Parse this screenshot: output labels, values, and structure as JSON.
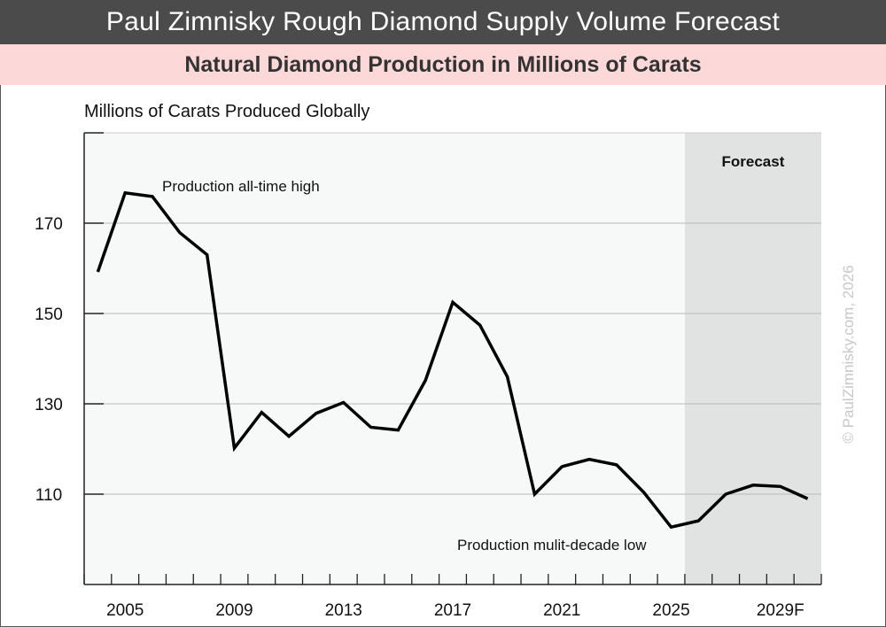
{
  "chart_data": {
    "type": "line",
    "title": "Paul Zimnisky Rough Diamond Supply Volume Forecast",
    "subtitle": "Natural Diamond Production in Millions of Carats",
    "ylabel": "Millions of Carats Produced Globally",
    "xlabel": "",
    "ylim": [
      90,
      190
    ],
    "yticks": [
      110,
      130,
      150,
      170
    ],
    "xlim": [
      2004,
      2030
    ],
    "xtick_labels": [
      {
        "year": 2005,
        "label": "2005"
      },
      {
        "year": 2009,
        "label": "2009"
      },
      {
        "year": 2013,
        "label": "2013"
      },
      {
        "year": 2017,
        "label": "2017"
      },
      {
        "year": 2021,
        "label": "2021"
      },
      {
        "year": 2025,
        "label": "2025"
      },
      {
        "year": 2029,
        "label": "2029F"
      }
    ],
    "grid": true,
    "forecast_region": {
      "from": 2025.5,
      "to": 2030.5,
      "label": "Forecast"
    },
    "series": [
      {
        "name": "Production",
        "x": [
          2004,
          2005,
          2006,
          2007,
          2008,
          2009,
          2010,
          2011,
          2012,
          2013,
          2014,
          2015,
          2016,
          2017,
          2018,
          2019,
          2020,
          2021,
          2022,
          2023,
          2024,
          2025,
          2026,
          2027,
          2028,
          2029,
          2030
        ],
        "values": [
          159.2,
          176.7,
          175.9,
          167.9,
          163,
          120.2,
          128.1,
          122.8,
          127.9,
          130.3,
          124.8,
          124.2,
          135.2,
          152.5,
          147.4,
          136,
          110,
          116.1,
          117.7,
          116.5,
          110.4,
          102.7,
          104.1,
          110,
          112,
          111.7,
          109
        ]
      }
    ],
    "annotations": [
      {
        "text": "Production all-time high",
        "year": 2006
      },
      {
        "text": "Production mulit-decade low",
        "year": 2025
      }
    ],
    "watermark": "© PaulZimnisky.com, 2026"
  },
  "colors": {
    "header": "#4b4b4b",
    "subheader": "#fcd8d8",
    "plot_bg": "#f7f9f9",
    "forecast_bg": "#e1e2e2",
    "line": "#000000"
  }
}
